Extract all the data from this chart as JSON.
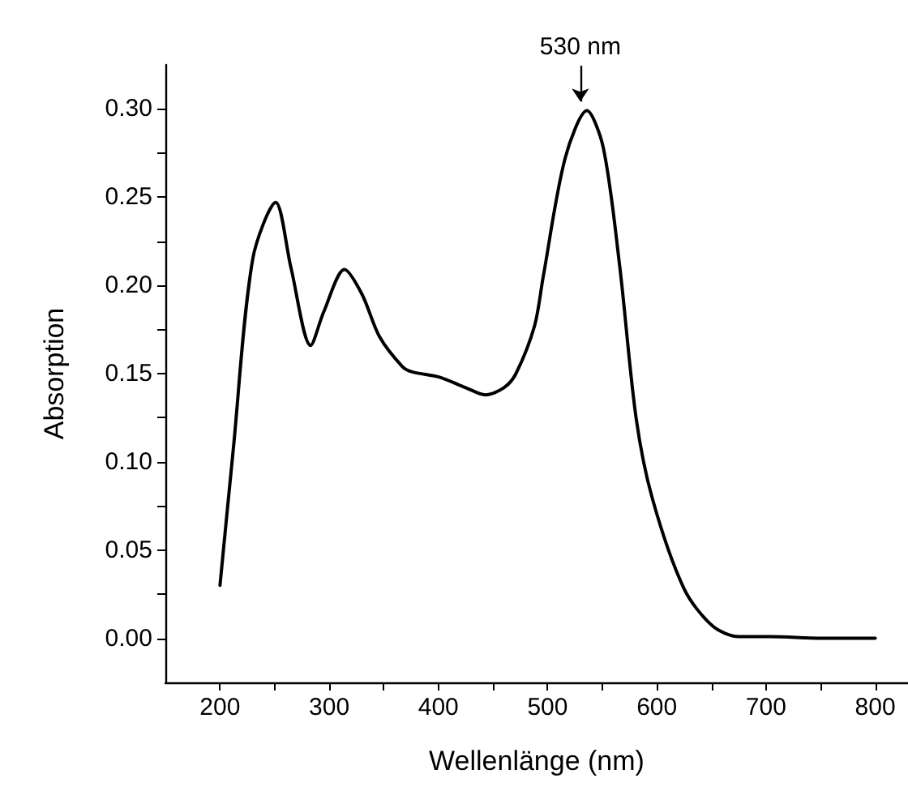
{
  "chart_data": {
    "type": "line",
    "xlabel": "Wellenlänge (nm)",
    "ylabel": "Absorption",
    "x": [
      200,
      212,
      230,
      251,
      265,
      283,
      295,
      314,
      330,
      346,
      367,
      376,
      401,
      425,
      443,
      460,
      471,
      488,
      496,
      516,
      536,
      551,
      566,
      581,
      596,
      625,
      651,
      675,
      704,
      750,
      800
    ],
    "series": [
      {
        "color": "#000000",
        "values": [
          0.03,
          0.106,
          0.215,
          0.247,
          0.21,
          0.166,
          0.185,
          0.209,
          0.195,
          0.171,
          0.154,
          0.151,
          0.148,
          0.142,
          0.138,
          0.142,
          0.15,
          0.177,
          0.205,
          0.272,
          0.299,
          0.278,
          0.211,
          0.125,
          0.079,
          0.028,
          0.007,
          0.001,
          0.001,
          0.0,
          0.0
        ]
      }
    ],
    "xlim": [
      150,
      830
    ],
    "xticks": [
      200,
      {
        "value": 250,
        "label": null
      },
      300,
      {
        "value": 350,
        "label": null
      },
      400,
      {
        "value": 450,
        "label": null
      },
      500,
      {
        "value": 550,
        "label": null
      },
      600,
      {
        "value": 650,
        "label": null
      },
      700,
      {
        "value": 750,
        "label": null
      },
      800
    ],
    "ylim": [
      -0.025,
      0.325
    ],
    "yticks": [
      {
        "value": 0,
        "label": "0.00"
      },
      {
        "value": 0.025,
        "label": null
      },
      {
        "value": 0.05,
        "label": "0.05"
      },
      {
        "value": 0.075,
        "label": null
      },
      {
        "value": 0.1,
        "label": "0.10"
      },
      {
        "value": 0.125,
        "label": null
      },
      {
        "value": 0.15,
        "label": "0.15"
      },
      {
        "value": 0.175,
        "label": null
      },
      {
        "value": 0.2,
        "label": "0.20"
      },
      {
        "value": 0.225,
        "label": null
      },
      {
        "value": 0.25,
        "label": "0.25"
      },
      {
        "value": 0.275,
        "label": null
      },
      {
        "value": 0.3,
        "label": "0.30"
      }
    ],
    "annotations": [
      {
        "text": "530 nm",
        "x": 530,
        "y": 0.3
      }
    ],
    "grid": false,
    "marker": "none",
    "line_style": "solid"
  }
}
